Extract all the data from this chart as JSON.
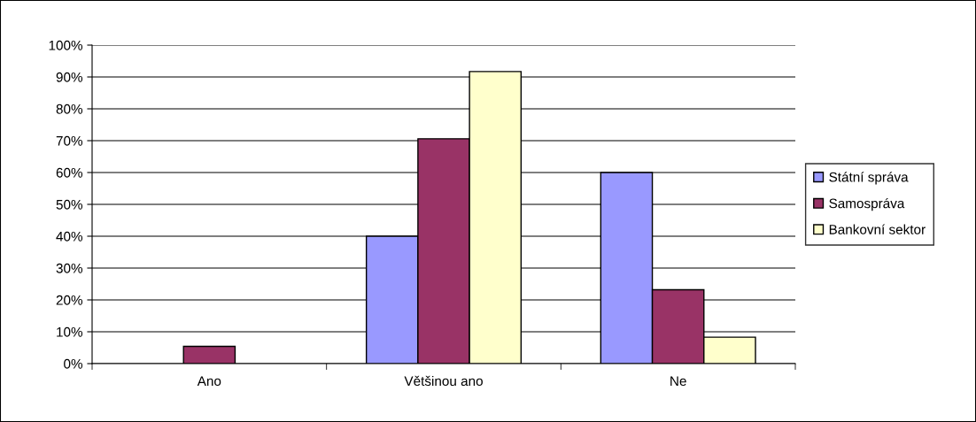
{
  "chart_data": {
    "type": "bar",
    "categories": [
      "Ano",
      "Většinou ano",
      "Ne"
    ],
    "series": [
      {
        "name": "Státní správa",
        "color": "#9999ff",
        "values": [
          null,
          40,
          60
        ]
      },
      {
        "name": "Samospráva",
        "color": "#993366",
        "values": [
          5.4,
          70.6,
          23.2
        ]
      },
      {
        "name": "Bankovní sektor",
        "color": "#ffffcc",
        "values": [
          null,
          91.7,
          8.3
        ]
      }
    ],
    "ylim": [
      0,
      100
    ],
    "yticks": [
      {
        "value": 0,
        "label": "0%"
      },
      {
        "value": 10,
        "label": "10%"
      },
      {
        "value": 20,
        "label": "20%"
      },
      {
        "value": 30,
        "label": "30%"
      },
      {
        "value": 40,
        "label": "40%"
      },
      {
        "value": 50,
        "label": "50%"
      },
      {
        "value": 60,
        "label": "60%"
      },
      {
        "value": 70,
        "label": "70%"
      },
      {
        "value": 80,
        "label": "80%"
      },
      {
        "value": 90,
        "label": "90%"
      },
      {
        "value": 100,
        "label": "100%"
      }
    ],
    "grid": "y",
    "legend": "right"
  }
}
